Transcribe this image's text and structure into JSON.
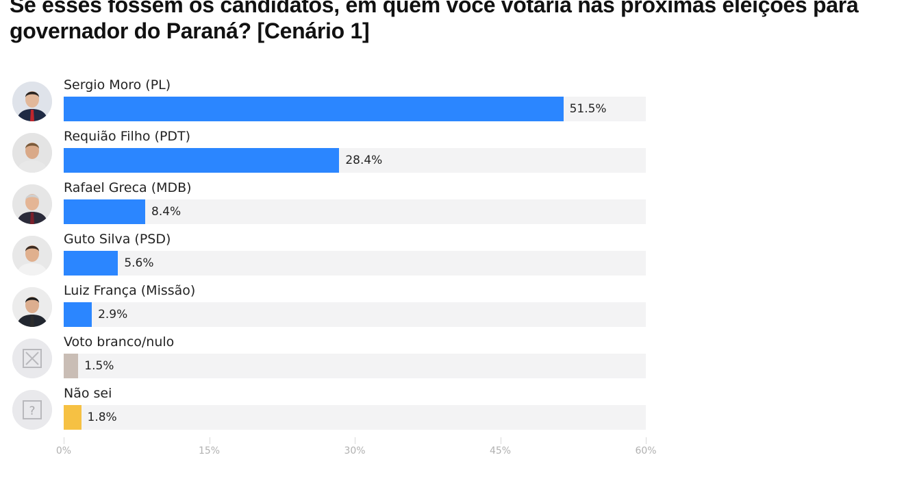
{
  "title": "Se esses fossem os candidatos, em quem você votaria nas próximas eleições para governador do Paraná? [Cenário 1]",
  "chart_data": {
    "type": "bar",
    "orientation": "horizontal",
    "title": "Se esses fossem os candidatos, em quem você votaria nas próximas eleições para governador do Paraná? [Cenário 1]",
    "categories": [
      "Sergio Moro (PL)",
      "Requião Filho (PDT)",
      "Rafael Greca (MDB)",
      "Guto Silva (PSD)",
      "Luiz França (Missão)",
      "Voto branco/nulo",
      "Não sei"
    ],
    "values": [
      51.5,
      28.4,
      8.4,
      5.6,
      2.9,
      1.5,
      1.8
    ],
    "value_labels": [
      "51.5%",
      "28.4%",
      "8.4%",
      "5.6%",
      "2.9%",
      "1.5%",
      "1.8%"
    ],
    "bar_colors": [
      "#2b86ff",
      "#2b86ff",
      "#2b86ff",
      "#2b86ff",
      "#2b86ff",
      "#c9bdb5",
      "#f6c143"
    ],
    "icons": [
      "candidate-photo",
      "candidate-photo",
      "candidate-photo",
      "candidate-photo",
      "candidate-photo",
      "x-box-icon",
      "question-box-icon"
    ],
    "xlim": [
      0,
      60
    ],
    "ticks": [
      0,
      15,
      30,
      45,
      60
    ],
    "tick_labels": [
      "0%",
      "15%",
      "30%",
      "45%",
      "60%"
    ],
    "grid": false,
    "legend": "none"
  }
}
